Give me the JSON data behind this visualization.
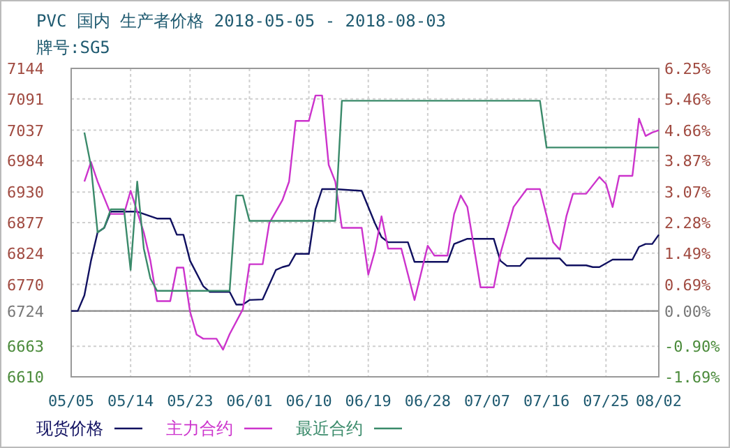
{
  "chart_data": {
    "type": "line",
    "title": "PVC 国内 生产者价格 2018-05-05 - 2018-08-03",
    "subtitle": "牌号:SG5",
    "xlim": [
      "2018-05-05",
      "2018-08-02"
    ],
    "xticks": [
      {
        "value": "2018-05-05",
        "label": "05/05"
      },
      {
        "value": "2018-05-14",
        "label": "05/14"
      },
      {
        "value": "2018-05-23",
        "label": "05/23"
      },
      {
        "value": "2018-06-01",
        "label": "06/01"
      },
      {
        "value": "2018-06-10",
        "label": "06/10"
      },
      {
        "value": "2018-06-19",
        "label": "06/19"
      },
      {
        "value": "2018-06-28",
        "label": "06/28"
      },
      {
        "value": "2018-07-07",
        "label": "07/07"
      },
      {
        "value": "2018-07-16",
        "label": "07/16"
      },
      {
        "value": "2018-07-25",
        "label": "07/25"
      },
      {
        "value": "2018-08-02",
        "label": "08/02"
      }
    ],
    "ylim": [
      6610,
      7144
    ],
    "yticks": [
      6610,
      6663,
      6724,
      6770,
      6824,
      6877,
      6930,
      6984,
      7037,
      7091,
      7144
    ],
    "y2lim": [
      -1.69,
      6.25
    ],
    "y2ticks": [
      {
        "value": -1.69,
        "label": "-1.69%"
      },
      {
        "value": -0.9,
        "label": "-0.90%"
      },
      {
        "value": 0,
        "label": "0.00%"
      },
      {
        "value": 0.69,
        "label": "0.69%"
      },
      {
        "value": 1.49,
        "label": "1.49%"
      },
      {
        "value": 2.28,
        "label": "2.28%"
      },
      {
        "value": 3.07,
        "label": "3.07%"
      },
      {
        "value": 3.87,
        "label": "3.87%"
      },
      {
        "value": 4.66,
        "label": "4.66%"
      },
      {
        "value": 5.46,
        "label": "5.46%"
      },
      {
        "value": 6.25,
        "label": "6.25%"
      }
    ],
    "grid": true,
    "legend": "bottom",
    "line_style": "solid",
    "marker": "none",
    "ref_lines": [
      {
        "axis": "y",
        "value": 6724,
        "color": "#8c8c8c"
      }
    ],
    "series": [
      {
        "name": "现货价格",
        "color": "#101060",
        "x": [
          "2018-05-05",
          "2018-05-06",
          "2018-05-07",
          "2018-05-08",
          "2018-05-09",
          "2018-05-10",
          "2018-05-11",
          "2018-05-15",
          "2018-05-18",
          "2018-05-20",
          "2018-05-21",
          "2018-05-22",
          "2018-05-23",
          "2018-05-25",
          "2018-05-26",
          "2018-05-29",
          "2018-05-30",
          "2018-05-31",
          "2018-06-01",
          "2018-06-03",
          "2018-06-05",
          "2018-06-06",
          "2018-06-07",
          "2018-06-08",
          "2018-06-10",
          "2018-06-11",
          "2018-06-12",
          "2018-06-14",
          "2018-06-18",
          "2018-06-20",
          "2018-06-21",
          "2018-06-22",
          "2018-06-25",
          "2018-06-26",
          "2018-07-01",
          "2018-07-02",
          "2018-07-04",
          "2018-07-08",
          "2018-07-09",
          "2018-07-10",
          "2018-07-12",
          "2018-07-13",
          "2018-07-18",
          "2018-07-19",
          "2018-07-22",
          "2018-07-23",
          "2018-07-24",
          "2018-07-26",
          "2018-07-29",
          "2018-07-30",
          "2018-07-31",
          "2018-08-01",
          "2018-08-02"
        ],
        "values": [
          6724,
          6724,
          6751,
          6811,
          6860,
          6868,
          6896,
          6896,
          6884,
          6884,
          6856,
          6856,
          6811,
          6767,
          6757,
          6757,
          6735,
          6735,
          6743,
          6744,
          6795,
          6800,
          6803,
          6823,
          6823,
          6900,
          6935,
          6935,
          6932,
          6876,
          6852,
          6843,
          6843,
          6809,
          6809,
          6840,
          6849,
          6849,
          6811,
          6802,
          6802,
          6815,
          6815,
          6803,
          6803,
          6800,
          6800,
          6813,
          6813,
          6835,
          6840,
          6840,
          6856
        ]
      },
      {
        "name": "主力合约",
        "color": "#cc33cc",
        "x": [
          "2018-05-07",
          "2018-05-08",
          "2018-05-09",
          "2018-05-11",
          "2018-05-13",
          "2018-05-14",
          "2018-05-15",
          "2018-05-16",
          "2018-05-17",
          "2018-05-18",
          "2018-05-20",
          "2018-05-21",
          "2018-05-22",
          "2018-05-23",
          "2018-05-24",
          "2018-05-25",
          "2018-05-27",
          "2018-05-28",
          "2018-05-29",
          "2018-05-31",
          "2018-06-01",
          "2018-06-03",
          "2018-06-04",
          "2018-06-06",
          "2018-06-07",
          "2018-06-08",
          "2018-06-10",
          "2018-06-11",
          "2018-06-12",
          "2018-06-13",
          "2018-06-14",
          "2018-06-15",
          "2018-06-18",
          "2018-06-19",
          "2018-06-20",
          "2018-06-21",
          "2018-06-22",
          "2018-06-24",
          "2018-06-26",
          "2018-06-28",
          "2018-06-29",
          "2018-07-01",
          "2018-07-02",
          "2018-07-03",
          "2018-07-04",
          "2018-07-06",
          "2018-07-08",
          "2018-07-09",
          "2018-07-11",
          "2018-07-13",
          "2018-07-15",
          "2018-07-17",
          "2018-07-18",
          "2018-07-19",
          "2018-07-20",
          "2018-07-22",
          "2018-07-24",
          "2018-07-25",
          "2018-07-26",
          "2018-07-27",
          "2018-07-29",
          "2018-07-30",
          "2018-07-31",
          "2018-08-01",
          "2018-08-02"
        ],
        "values": [
          6948,
          6982,
          6948,
          6892,
          6892,
          6932,
          6896,
          6860,
          6811,
          6741,
          6741,
          6799,
          6799,
          6723,
          6683,
          6676,
          6676,
          6657,
          6684,
          6727,
          6805,
          6805,
          6876,
          6916,
          6948,
          7053,
          7053,
          7097,
          7097,
          6977,
          6948,
          6868,
          6868,
          6787,
          6828,
          6888,
          6832,
          6832,
          6743,
          6837,
          6820,
          6820,
          6892,
          6924,
          6904,
          6765,
          6765,
          6823,
          6904,
          6935,
          6935,
          6843,
          6830,
          6888,
          6927,
          6927,
          6956,
          6944,
          6904,
          6958,
          6958,
          7057,
          7027,
          7033,
          7037
        ]
      },
      {
        "name": "最近合约",
        "color": "#3a8a6a",
        "x": [
          "2018-05-07",
          "2018-05-08",
          "2018-05-09",
          "2018-05-10",
          "2018-05-11",
          "2018-05-13",
          "2018-05-14",
          "2018-05-15",
          "2018-05-16",
          "2018-05-17",
          "2018-05-18",
          "2018-05-29",
          "2018-05-30",
          "2018-05-31",
          "2018-06-01",
          "2018-06-14",
          "2018-06-15",
          "2018-07-15",
          "2018-07-16",
          "2018-08-02"
        ],
        "values": [
          7033,
          6975,
          6860,
          6868,
          6900,
          6900,
          6795,
          6948,
          6832,
          6780,
          6759,
          6759,
          6924,
          6924,
          6880,
          6880,
          7088,
          7088,
          7007,
          7007
        ]
      }
    ]
  }
}
